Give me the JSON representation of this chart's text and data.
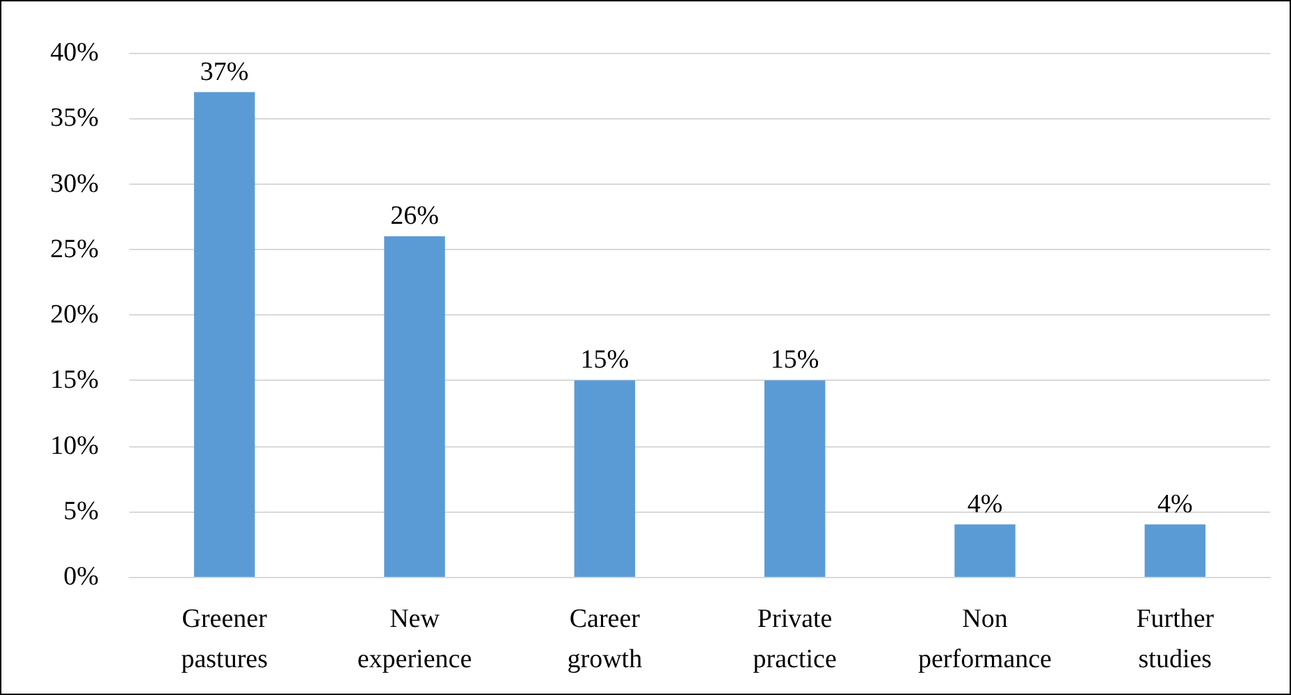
{
  "chart_data": {
    "type": "bar",
    "categories": [
      "Greener pastures",
      "New experience",
      "Career growth",
      "Private practice",
      "Non performance",
      "Further studies"
    ],
    "values": [
      37,
      26,
      15,
      15,
      4,
      4
    ],
    "value_labels": [
      "37%",
      "26%",
      "15%",
      "15%",
      "4%",
      "4%"
    ],
    "color": "#5b9bd5",
    "ylim": [
      0,
      40
    ],
    "yticks": [
      {
        "value": 0,
        "label": "0%"
      },
      {
        "value": 5,
        "label": "5%"
      },
      {
        "value": 10,
        "label": "10%"
      },
      {
        "value": 15,
        "label": "15%"
      },
      {
        "value": 20,
        "label": "20%"
      },
      {
        "value": 25,
        "label": "25%"
      },
      {
        "value": 30,
        "label": "30%"
      },
      {
        "value": 35,
        "label": "35%"
      },
      {
        "value": 40,
        "label": "40%"
      }
    ],
    "grid": "y"
  }
}
